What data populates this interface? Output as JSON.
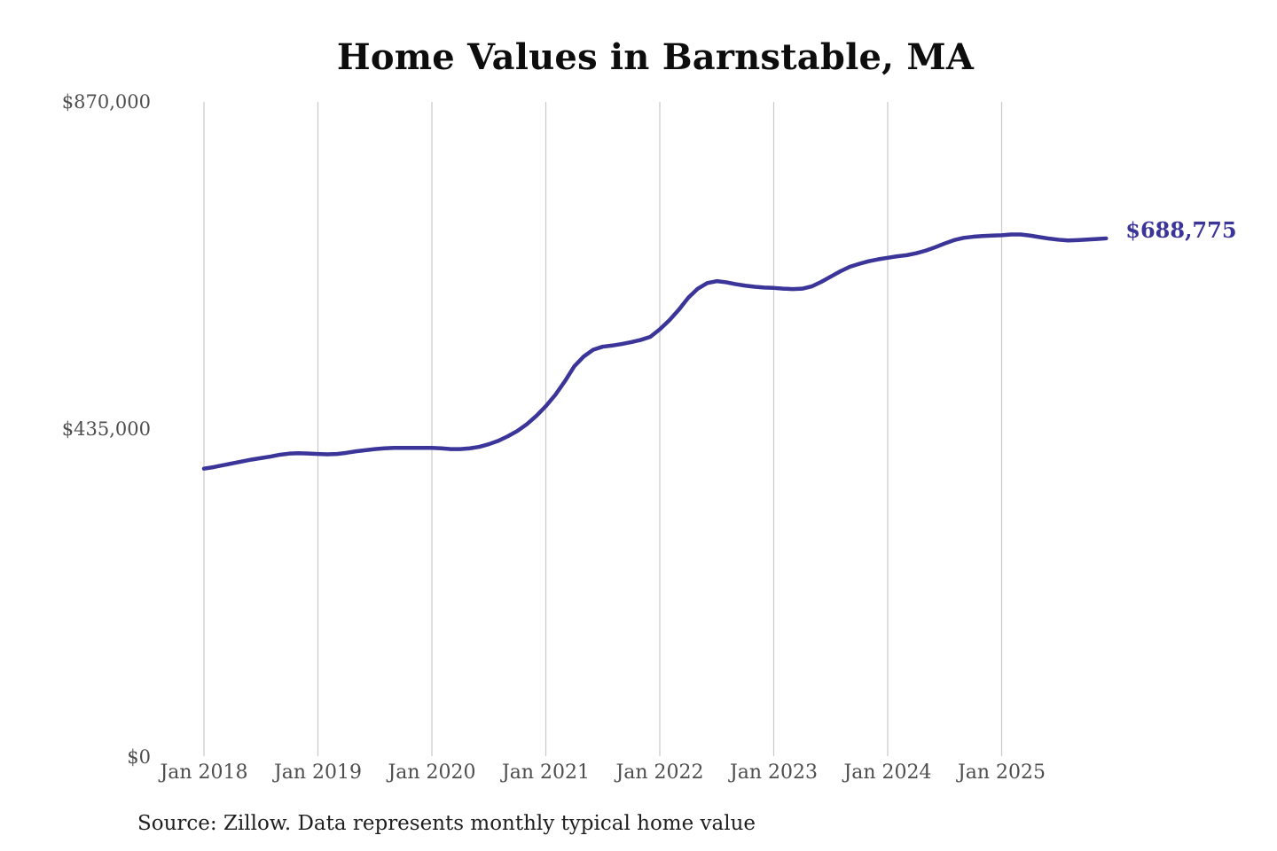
{
  "chart_data": {
    "type": "line",
    "title": "Home Values in Barnstable, MA",
    "source_note": "Source: Zillow. Data represents monthly typical home value",
    "series_name": "Monthly typical home value",
    "unit": "USD",
    "frequency": "monthly",
    "x_start": "Jan 2018",
    "x_end": "Dec 2025",
    "x_ticks": [
      "Jan 2018",
      "Jan 2019",
      "Jan 2020",
      "Jan 2021",
      "Jan 2022",
      "Jan 2023",
      "Jan 2024",
      "Jan 2025"
    ],
    "y_ticks": [
      {
        "label": "$0",
        "value": 0
      },
      {
        "label": "$435,000",
        "value": 435000
      },
      {
        "label": "$870,000",
        "value": 870000
      }
    ],
    "ylim": [
      0,
      870000
    ],
    "grid": "vertical-only",
    "legend": "none",
    "end_label": "$688,775",
    "end_value": 688775,
    "values": [
      383000,
      385000,
      387500,
      390000,
      392500,
      395000,
      397000,
      399000,
      401500,
      403000,
      403500,
      403000,
      402500,
      402000,
      402500,
      404000,
      406000,
      407500,
      409000,
      410000,
      410500,
      410500,
      410500,
      410500,
      410500,
      410000,
      409000,
      409000,
      410000,
      412000,
      415500,
      420000,
      426000,
      433000,
      442000,
      453000,
      466000,
      481000,
      499000,
      519000,
      532000,
      541000,
      545000,
      546500,
      548500,
      551000,
      554000,
      558000,
      568000,
      580000,
      594000,
      610000,
      622000,
      629500,
      632000,
      630500,
      628000,
      626000,
      624500,
      623500,
      623000,
      622000,
      621500,
      622000,
      625000,
      631000,
      638000,
      645000,
      651000,
      655000,
      658500,
      661000,
      663000,
      665000,
      666500,
      669000,
      672500,
      677000,
      682000,
      686500,
      689500,
      691000,
      692000,
      692500,
      693000,
      694000,
      694000,
      692500,
      690500,
      688500,
      687000,
      686000,
      686500,
      687200,
      688000,
      688775
    ],
    "colors": {
      "line": "#3b3499",
      "end_label": "#3b3499",
      "grid": "#c9c9c9",
      "axis_text": "#4e4e4e",
      "title_text": "#0d0d0d",
      "source_text": "#1f1f1f",
      "background": "#ffffff"
    }
  }
}
